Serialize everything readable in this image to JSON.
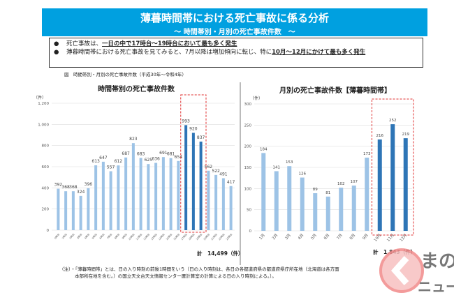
{
  "header": {
    "title": "薄暮時間帯における死亡事故に係る分析",
    "subtitle": "～ 時間帯別・月別の死亡事故件数　～"
  },
  "bullets": [
    {
      "pre": "死亡事故は、",
      "em": "一日の中で17時台～19時台において最も多く発生",
      "post": ""
    },
    {
      "pre": "薄暮時間帯における死亡事故を見てみると、7月以降は増加傾向に転じ、特に",
      "em": "10月～12月にかけて最も多く発生",
      "post": ""
    }
  ],
  "caption": "図　時間帯別・月別の死亡事故件数（平成30年～令和4年）",
  "chart_data": [
    {
      "type": "bar",
      "title": "時間帯別の死亡事故件数",
      "ylabel": "（件）",
      "ylim": [
        0,
        1200
      ],
      "yticks": [
        "0",
        "200",
        "400",
        "600",
        "800",
        "1,000",
        "1,200"
      ],
      "categories": [
        "0時台",
        "1時台",
        "2時台",
        "3時台",
        "4時台",
        "5時台",
        "6時台",
        "7時台",
        "8時台",
        "9時台",
        "10時台",
        "11時台",
        "12時台",
        "13時台",
        "14時台",
        "15時台",
        "16時台",
        "17時台",
        "18時台",
        "19時台",
        "20時台",
        "21時台",
        "22時台",
        "23時台"
      ],
      "values": [
        392,
        368,
        368,
        324,
        396,
        613,
        647,
        557,
        612,
        687,
        823,
        683,
        625,
        636,
        691,
        681,
        654,
        993,
        920,
        837,
        562,
        522,
        491,
        417
      ],
      "highlight": [
        17,
        18,
        19
      ],
      "total": "計　14,499（件）"
    },
    {
      "type": "bar",
      "title": "月別の死亡事故件数【薄暮時間帯】",
      "ylabel": "（件）",
      "ylim": [
        0,
        300
      ],
      "yticks": [
        "0",
        "50",
        "100",
        "150",
        "200",
        "250",
        "300"
      ],
      "categories": [
        "1月",
        "2月",
        "3月",
        "4月",
        "5月",
        "6月",
        "7月",
        "8月",
        "9月",
        "10月",
        "11月",
        "12月"
      ],
      "values": [
        184,
        141,
        153,
        126,
        89,
        81,
        102,
        107,
        173,
        216,
        252,
        219
      ],
      "highlight": [
        9,
        10,
        11
      ],
      "total": "計　1,843（件）"
    }
  ],
  "colors": {
    "bar": "#9dc3e6",
    "highlight": "#2e75b6",
    "box": "#e03030",
    "header": "#00a0e0"
  },
  "note": {
    "line1": "（注）・「薄暮時間帯」とは、日の入り時刻の前後1時間をいう（日の入り時刻は、各日の各都道府県の都道府県庁所在地（北海道は各方面",
    "line2": "本部所在地を含む。）の国立天文台天文情報センター暦計算室の計算による日の入り時刻による。）。"
  },
  "logo": {
    "line1": "るまの",
    "line2": "ニュース"
  }
}
